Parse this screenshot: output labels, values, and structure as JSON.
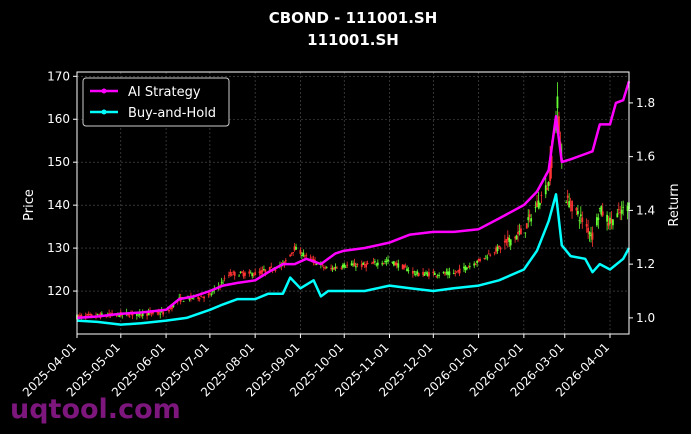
{
  "title_line1": "CBOND - 111001.SH",
  "title_line2": "111001.SH",
  "watermark": "uqtool.com",
  "colors": {
    "background": "#000000",
    "ai_strategy": "#ff00ff",
    "buy_and_hold": "#00ffff",
    "candle_up": "#66ff33",
    "candle_down": "#ff3333",
    "grid": "#555555"
  },
  "chart_data": {
    "type": "line",
    "ylabel_left": "Price",
    "ylabel_right": "Return",
    "ylim_left": [
      110,
      171
    ],
    "ylim_right": [
      0.94,
      1.915
    ],
    "yticks_left": [
      "120",
      "130",
      "140",
      "150",
      "160",
      "170"
    ],
    "yticks_right": [
      "1.0",
      "1.2",
      "1.4",
      "1.6",
      "1.8"
    ],
    "xlim": [
      "2025-04-01",
      "2026-04-14"
    ],
    "xticks": [
      "2025-04-01",
      "2025-05-01",
      "2025-06-01",
      "2025-07-01",
      "2025-08-01",
      "2025-09-01",
      "2025-10-01",
      "2025-11-01",
      "2025-12-01",
      "2026-01-01",
      "2026-02-01",
      "2026-03-01",
      "2026-04-01"
    ],
    "grid": true,
    "legend_position": "top-left",
    "series": [
      {
        "name": "AI Strategy",
        "axis": "right",
        "x": [
          "2025-04-01",
          "2025-04-15",
          "2025-05-01",
          "2025-05-15",
          "2025-06-01",
          "2025-06-10",
          "2025-06-20",
          "2025-07-01",
          "2025-07-10",
          "2025-07-20",
          "2025-08-01",
          "2025-08-10",
          "2025-08-20",
          "2025-08-28",
          "2025-09-05",
          "2025-09-15",
          "2025-09-25",
          "2025-10-01",
          "2025-10-15",
          "2025-11-01",
          "2025-11-15",
          "2025-12-01",
          "2025-12-15",
          "2026-01-01",
          "2026-01-15",
          "2026-02-01",
          "2026-02-10",
          "2026-02-18",
          "2026-02-23",
          "2026-02-27",
          "2026-03-05",
          "2026-03-15",
          "2026-03-20",
          "2026-03-25",
          "2026-04-01",
          "2026-04-05",
          "2026-04-10",
          "2026-04-14"
        ],
        "values": [
          1.0,
          1.005,
          1.015,
          1.02,
          1.03,
          1.07,
          1.08,
          1.1,
          1.12,
          1.13,
          1.14,
          1.17,
          1.2,
          1.2,
          1.22,
          1.2,
          1.24,
          1.25,
          1.26,
          1.28,
          1.31,
          1.32,
          1.32,
          1.33,
          1.37,
          1.42,
          1.47,
          1.55,
          1.75,
          1.58,
          1.59,
          1.61,
          1.62,
          1.72,
          1.72,
          1.8,
          1.81,
          1.88
        ]
      },
      {
        "name": "Buy-and-Hold",
        "axis": "right",
        "x": [
          "2025-04-01",
          "2025-04-15",
          "2025-05-01",
          "2025-05-15",
          "2025-06-01",
          "2025-06-15",
          "2025-07-01",
          "2025-07-10",
          "2025-07-20",
          "2025-08-01",
          "2025-08-10",
          "2025-08-20",
          "2025-08-25",
          "2025-09-01",
          "2025-09-10",
          "2025-09-15",
          "2025-09-20",
          "2025-10-01",
          "2025-10-15",
          "2025-11-01",
          "2025-11-15",
          "2025-12-01",
          "2025-12-15",
          "2026-01-01",
          "2026-01-15",
          "2026-02-01",
          "2026-02-10",
          "2026-02-18",
          "2026-02-23",
          "2026-02-27",
          "2026-03-05",
          "2026-03-15",
          "2026-03-20",
          "2026-03-25",
          "2026-04-01",
          "2026-04-10",
          "2026-04-14"
        ],
        "values": [
          0.99,
          0.985,
          0.975,
          0.98,
          0.99,
          1.0,
          1.03,
          1.05,
          1.07,
          1.07,
          1.09,
          1.09,
          1.15,
          1.11,
          1.14,
          1.08,
          1.1,
          1.1,
          1.1,
          1.12,
          1.11,
          1.1,
          1.11,
          1.12,
          1.14,
          1.18,
          1.25,
          1.36,
          1.46,
          1.27,
          1.23,
          1.22,
          1.17,
          1.2,
          1.18,
          1.22,
          1.26
        ]
      }
    ],
    "candles": {
      "axis": "left",
      "note": "daily price candlesticks",
      "anchors_x": [
        "2025-04-01",
        "2025-05-01",
        "2025-06-01",
        "2025-06-10",
        "2025-07-01",
        "2025-07-15",
        "2025-08-01",
        "2025-08-20",
        "2025-08-28",
        "2025-09-05",
        "2025-09-20",
        "2025-10-01",
        "2025-10-15",
        "2025-11-01",
        "2025-11-20",
        "2025-12-01",
        "2025-12-15",
        "2026-01-01",
        "2026-01-15",
        "2026-02-01",
        "2026-02-10",
        "2026-02-18",
        "2026-02-24",
        "2026-03-01",
        "2026-03-10",
        "2026-03-20",
        "2026-03-25",
        "2026-04-01",
        "2026-04-14"
      ],
      "anchors_price": [
        114,
        114.5,
        115,
        118,
        119,
        124,
        124,
        126,
        130,
        128,
        125,
        126,
        126,
        127,
        124,
        124,
        124,
        127,
        130,
        134,
        140,
        145,
        163,
        142,
        138,
        133,
        139,
        136,
        140
      ]
    }
  }
}
